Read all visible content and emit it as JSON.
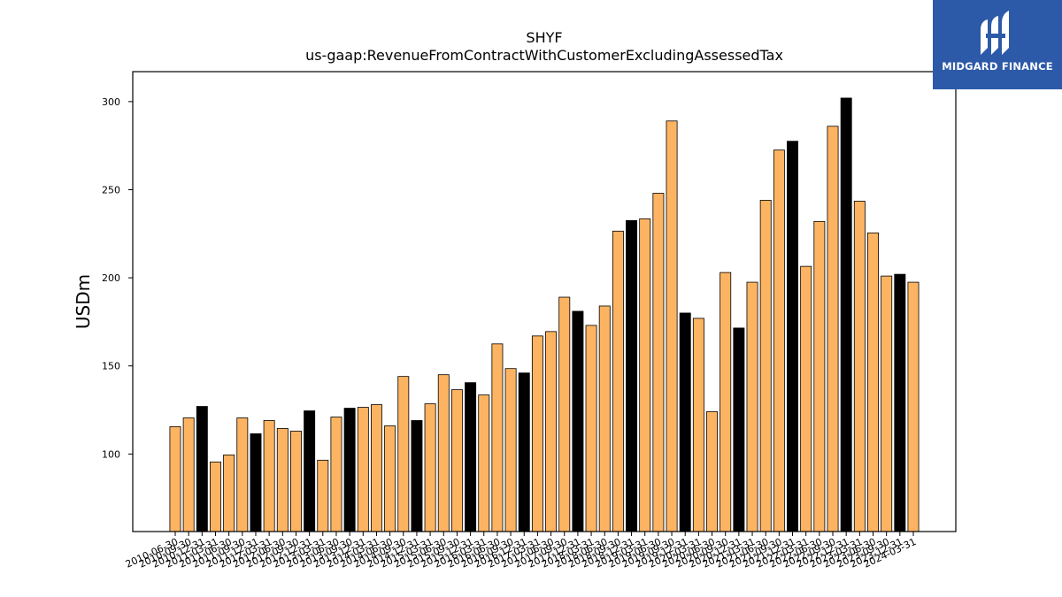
{
  "chart_data": {
    "type": "bar",
    "title": "SHYF",
    "subtitle": "us-gaap:RevenueFromContractWithCustomerExcludingAssessedTax",
    "xlabel": "",
    "ylabel": "USDm",
    "ylim": [
      56,
      317
    ],
    "yticks": [
      100,
      150,
      200,
      250,
      300
    ],
    "grid": false,
    "colors": {
      "quarter": "#FDB462",
      "fiscal_year_end": "#000000"
    },
    "categories": [
      "2010-06-30",
      "2010-09-30",
      "2010-12-31",
      "2011-03-31",
      "2011-06-30",
      "2011-09-30",
      "2011-12-31",
      "2012-03-31",
      "2012-06-30",
      "2012-09-30",
      "2012-12-31",
      "2013-03-31",
      "2013-06-30",
      "2013-09-30",
      "2013-12-31",
      "2014-03-31",
      "2014-06-30",
      "2014-09-30",
      "2014-12-31",
      "2015-03-31",
      "2015-06-30",
      "2015-09-30",
      "2015-12-31",
      "2016-03-31",
      "2016-06-30",
      "2016-09-30",
      "2016-12-31",
      "2017-03-31",
      "2017-06-30",
      "2017-09-30",
      "2017-12-31",
      "2018-03-31",
      "2018-06-30",
      "2018-09-30",
      "2018-12-31",
      "2019-03-31",
      "2019-06-30",
      "2019-09-30",
      "2019-12-31",
      "2020-03-31",
      "2020-06-30",
      "2020-09-30",
      "2020-12-31",
      "2021-03-31",
      "2021-06-30",
      "2021-09-30",
      "2021-12-31",
      "2022-03-31",
      "2022-06-30",
      "2022-09-30",
      "2022-12-31",
      "2023-03-31",
      "2023-06-30",
      "2023-09-30",
      "2023-12-31",
      "2024-03-31"
    ],
    "values": [
      115.5,
      120.5,
      127,
      95.5,
      99.5,
      120.5,
      111.5,
      119,
      114.5,
      113,
      124.5,
      96.5,
      121,
      126,
      126.5,
      128,
      116,
      144,
      119,
      128.5,
      145,
      136.5,
      140.5,
      133.5,
      162.5,
      148.5,
      146,
      167,
      169.5,
      189,
      181,
      173,
      184,
      226.5,
      232.5,
      233.5,
      248,
      289,
      180,
      177,
      124,
      203,
      171.5,
      197.5,
      244,
      272.5,
      277.5,
      206.5,
      232,
      286,
      302,
      243.5,
      225.5,
      201,
      202,
      197.5
    ],
    "highlight": [
      false,
      false,
      true,
      false,
      false,
      false,
      true,
      false,
      false,
      false,
      true,
      false,
      false,
      true,
      false,
      false,
      false,
      false,
      true,
      false,
      false,
      false,
      true,
      false,
      false,
      false,
      true,
      false,
      false,
      false,
      true,
      false,
      false,
      false,
      true,
      false,
      false,
      false,
      true,
      false,
      false,
      false,
      true,
      false,
      false,
      false,
      true,
      false,
      false,
      false,
      true,
      false,
      false,
      false,
      true,
      false
    ]
  },
  "logo": {
    "text": "MIDGARD FINANCE"
  }
}
